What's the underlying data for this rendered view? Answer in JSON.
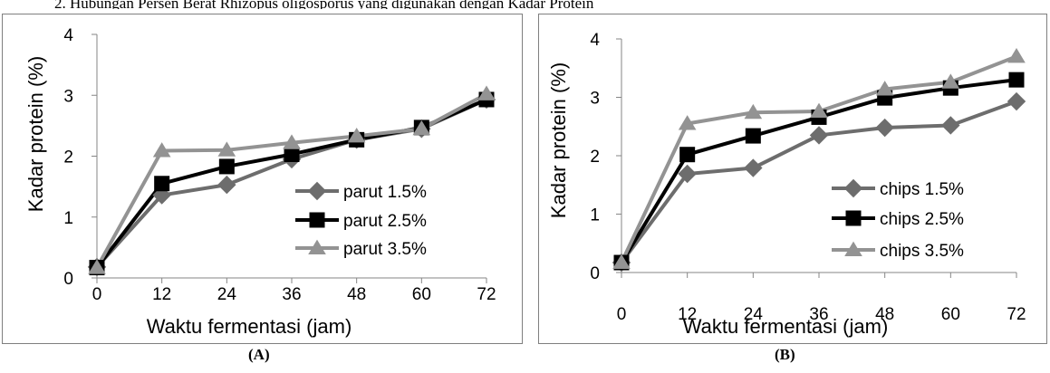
{
  "header_text": "2.  Hubungan Persen Berat Rhizopus oligosporus yang digunakan dengan Kadar Protein",
  "captions": [
    "(A)",
    "(B)"
  ],
  "colors": {
    "series_1": "#6d6d6d",
    "series_2": "#000000",
    "series_3": "#939393",
    "frame": "#7f7f7f",
    "axis": "#868686"
  },
  "chart_data": [
    {
      "type": "line",
      "title": "",
      "xlabel": "Waktu fermentasi (jam)",
      "ylabel": "Kadar protein (%)",
      "x": [
        0,
        12,
        24,
        36,
        48,
        60,
        72
      ],
      "x_ticks": [
        "0",
        "12",
        "24",
        "36",
        "48",
        "60",
        "72"
      ],
      "y_ticks": [
        "0",
        "1",
        "2",
        "3",
        "4"
      ],
      "ylim": [
        0,
        4
      ],
      "grid": false,
      "legend": "bottom-right",
      "series": [
        {
          "name": "parut 1.5%",
          "marker": "diamond",
          "values": [
            0.18,
            1.36,
            1.53,
            1.95,
            2.27,
            2.45,
            2.93
          ]
        },
        {
          "name": "parut 2.5%",
          "marker": "square",
          "values": [
            0.17,
            1.55,
            1.83,
            2.03,
            2.27,
            2.47,
            2.93
          ]
        },
        {
          "name": "parut 3.5%",
          "marker": "triangle",
          "values": [
            0.17,
            2.09,
            2.1,
            2.22,
            2.33,
            2.45,
            3.02
          ]
        }
      ]
    },
    {
      "type": "line",
      "title": "",
      "xlabel": "Waktu fermentasi (jam)",
      "ylabel": "Kadar protein (%)",
      "x": [
        0,
        12,
        24,
        36,
        48,
        60,
        72
      ],
      "x_ticks": [
        "0",
        "12",
        "24",
        "36",
        "48",
        "60",
        "72"
      ],
      "y_ticks": [
        "0",
        "1",
        "2",
        "3",
        "4"
      ],
      "ylim": [
        0,
        4
      ],
      "grid": false,
      "legend": "bottom-right",
      "series": [
        {
          "name": "chips 1.5%",
          "marker": "diamond",
          "values": [
            0.17,
            1.69,
            1.79,
            2.35,
            2.48,
            2.52,
            2.93
          ]
        },
        {
          "name": "chips 2.5%",
          "marker": "square",
          "values": [
            0.17,
            2.02,
            2.34,
            2.66,
            2.99,
            3.16,
            3.3
          ]
        },
        {
          "name": "chips 3.5%",
          "marker": "triangle",
          "values": [
            0.17,
            2.55,
            2.74,
            2.76,
            3.14,
            3.26,
            3.7
          ]
        }
      ]
    }
  ]
}
